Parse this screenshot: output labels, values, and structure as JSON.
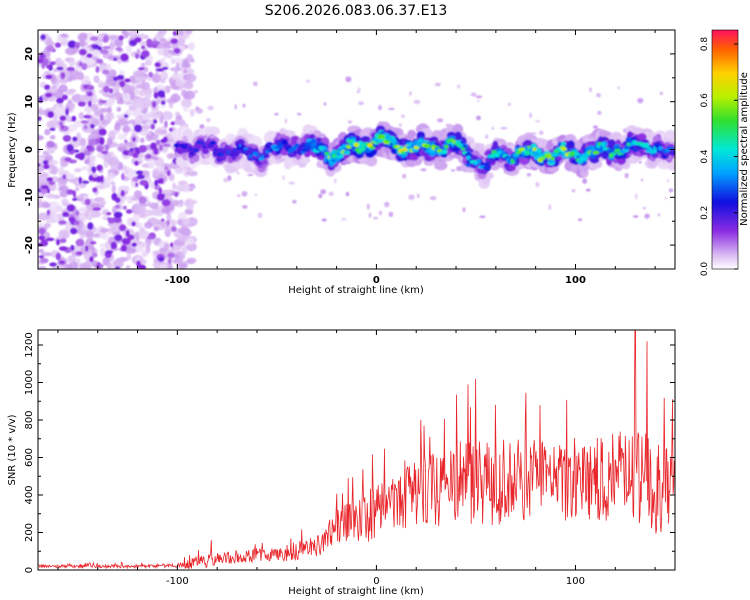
{
  "title": "S206.2026.083.06.37.E13",
  "chart_data": [
    {
      "type": "heatmap",
      "xlabel": "Height of straight line (km)",
      "ylabel": "Frequency (Hz)",
      "xlim": [
        -170,
        150
      ],
      "ylim": [
        -25,
        25
      ],
      "xticks": [
        -100,
        0,
        100
      ],
      "yticks": [
        -20,
        -10,
        0,
        10,
        20
      ],
      "colorbar": {
        "label": "Normalized spectral amplitude",
        "range": [
          0,
          0.85
        ],
        "ticks": [
          0.0,
          0.2,
          0.4,
          0.6,
          0.8
        ]
      },
      "noise_region_x": [
        -170,
        -100
      ],
      "signal_track": {
        "description": "Doppler line centred near 0 Hz",
        "x": [
          -100,
          -80,
          -60,
          -40,
          -20,
          0,
          20,
          40,
          55,
          60,
          80,
          100,
          120,
          140,
          150
        ],
        "freq": [
          1,
          0,
          -1,
          1,
          -1,
          2,
          0,
          1,
          -4,
          -1,
          -1,
          -1,
          0,
          1,
          -2
        ],
        "amplitude": [
          0.2,
          0.25,
          0.3,
          0.3,
          0.55,
          0.6,
          0.55,
          0.5,
          0.3,
          0.45,
          0.55,
          0.55,
          0.45,
          0.35,
          0.25
        ]
      }
    },
    {
      "type": "line",
      "xlabel": "Height of straight line (km)",
      "ylabel": "SNR (10 * v/v)",
      "xlim": [
        -170,
        150
      ],
      "ylim": [
        0,
        1280
      ],
      "xticks": [
        -100,
        0,
        100
      ],
      "yticks": [
        0,
        200,
        400,
        600,
        800,
        1000,
        1200
      ],
      "color": "#e8252a",
      "envelope": {
        "x": [
          -170,
          -120,
          -100,
          -88,
          -80,
          -60,
          -40,
          -30,
          -20,
          -10,
          0,
          20,
          40,
          50,
          60,
          80,
          100,
          120,
          130,
          140,
          150
        ],
        "mean": [
          20,
          20,
          25,
          40,
          60,
          80,
          100,
          130,
          230,
          280,
          300,
          400,
          460,
          480,
          470,
          490,
          480,
          500,
          480,
          460,
          430
        ],
        "spread": [
          8,
          10,
          10,
          40,
          30,
          40,
          50,
          60,
          100,
          130,
          150,
          180,
          230,
          250,
          230,
          220,
          230,
          240,
          260,
          270,
          250
        ]
      },
      "notable_peaks": [
        {
          "x": -83,
          "y": 160
        },
        {
          "x": 46,
          "y": 990
        },
        {
          "x": 130,
          "y": 1280
        },
        {
          "x": 136,
          "y": 1220
        }
      ]
    }
  ]
}
